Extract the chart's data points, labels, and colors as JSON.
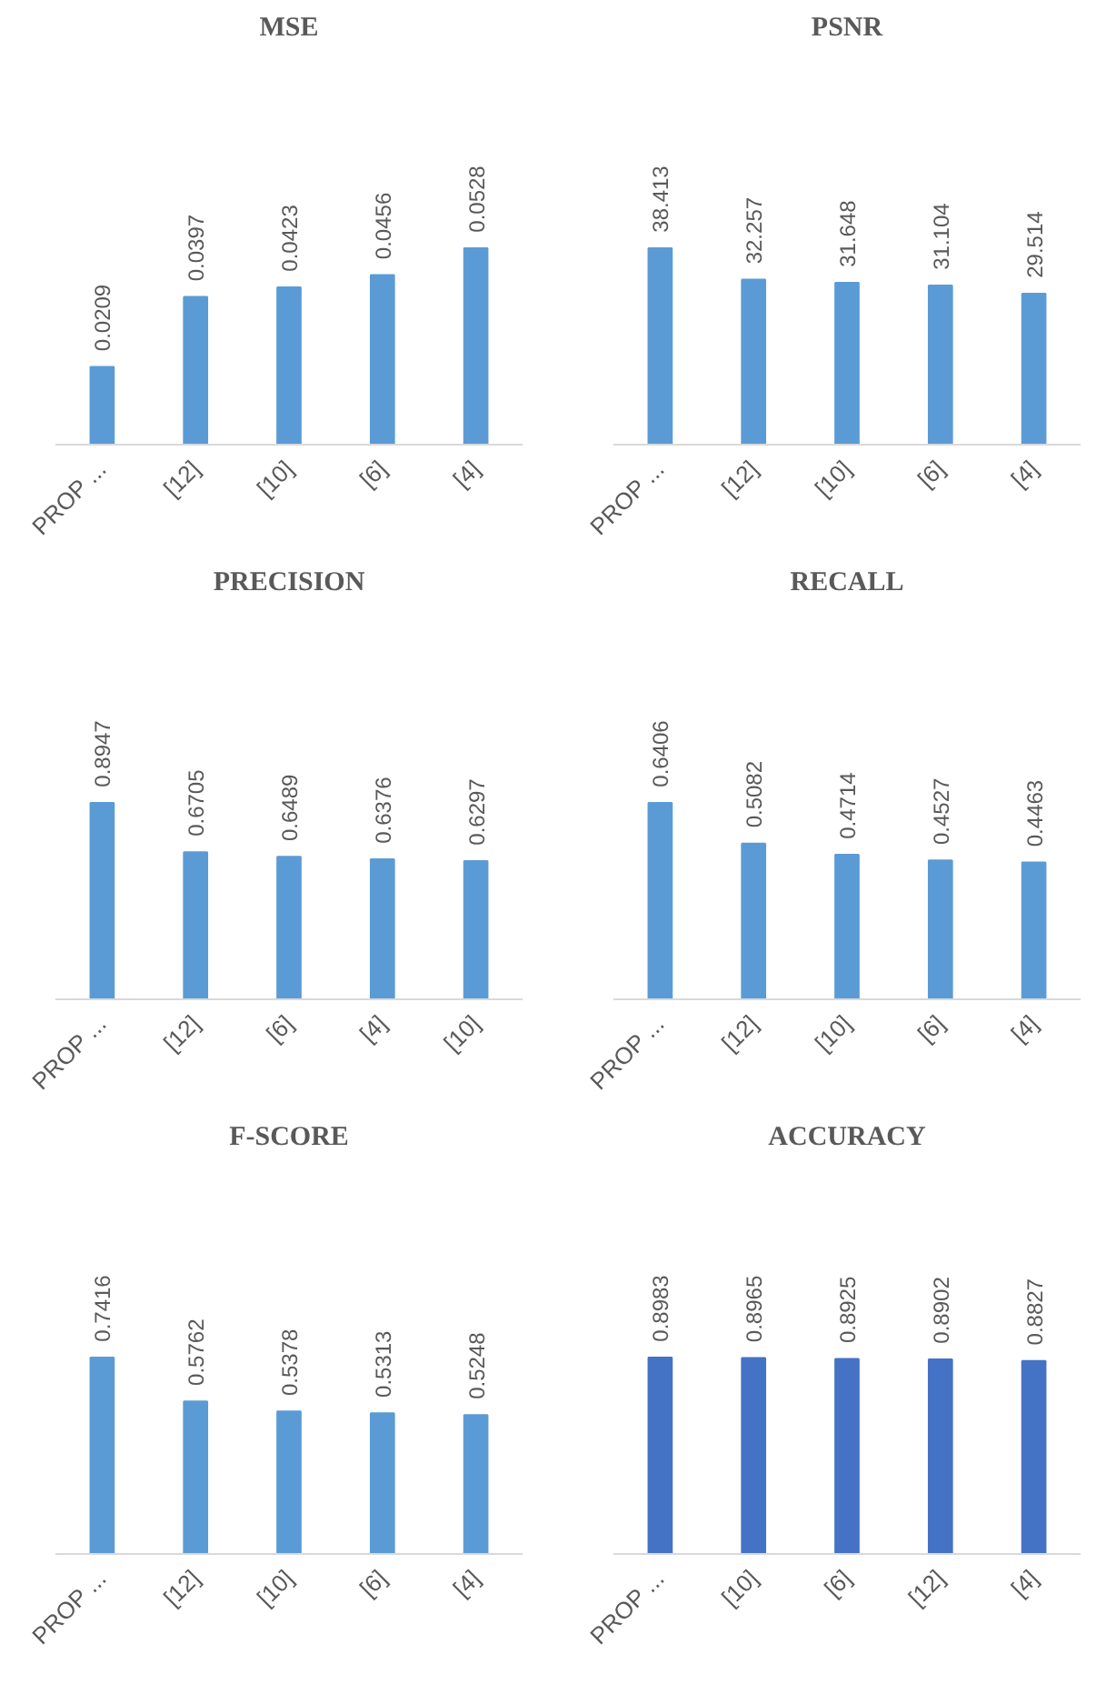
{
  "chart_data": [
    {
      "type": "bar",
      "title": "MSE",
      "categories": [
        "PROP ...",
        "[12]",
        "[10]",
        "[6]",
        "[4]"
      ],
      "values": [
        0.0209,
        0.0397,
        0.0423,
        0.0456,
        0.0528
      ],
      "color": "#5b9bd5",
      "data_labels": true
    },
    {
      "type": "bar",
      "title": "PSNR",
      "categories": [
        "PROP ...",
        "[12]",
        "[10]",
        "[6]",
        "[4]"
      ],
      "values": [
        38.413,
        32.257,
        31.648,
        31.104,
        29.514
      ],
      "color": "#5b9bd5",
      "data_labels": true
    },
    {
      "type": "bar",
      "title": "PRECISION",
      "categories": [
        "PROP ...",
        "[12]",
        "[6]",
        "[4]",
        "[10]"
      ],
      "values": [
        0.8947,
        0.6705,
        0.6489,
        0.6376,
        0.6297
      ],
      "color": "#5b9bd5",
      "data_labels": true
    },
    {
      "type": "bar",
      "title": "RECALL",
      "categories": [
        "PROP ...",
        "[12]",
        "[10]",
        "[6]",
        "[4]"
      ],
      "values": [
        0.6406,
        0.5082,
        0.4714,
        0.4527,
        0.4463
      ],
      "color": "#5b9bd5",
      "data_labels": true
    },
    {
      "type": "bar",
      "title": "F-SCORE",
      "categories": [
        "PROP ...",
        "[12]",
        "[10]",
        "[6]",
        "[4]"
      ],
      "values": [
        0.7416,
        0.5762,
        0.5378,
        0.5313,
        0.5248
      ],
      "color": "#5b9bd5",
      "data_labels": true
    },
    {
      "type": "bar",
      "title": "ACCURACY",
      "categories": [
        "PROP ...",
        "[10]",
        "[6]",
        "[12]",
        "[4]"
      ],
      "values": [
        0.8983,
        0.8965,
        0.8925,
        0.8902,
        0.8827
      ],
      "color": "#4472c4",
      "data_labels": true
    }
  ]
}
